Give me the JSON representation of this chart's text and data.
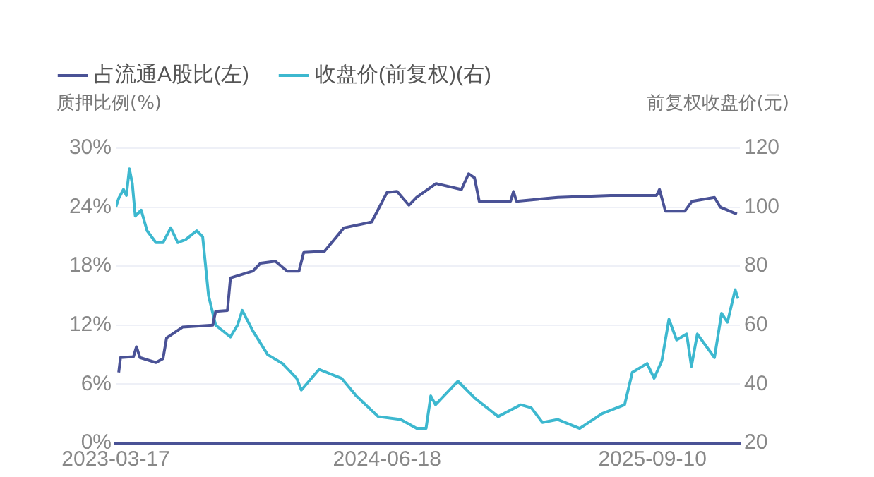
{
  "chart_data": {
    "type": "line",
    "ylabel": "质押比例(%)",
    "y2label": "前复权收盘价(元)",
    "xlim": [
      "2023-03-17",
      "2026-02-05"
    ],
    "xticks": [
      "2023-03-17",
      "2024-06-18",
      "2025-09-10"
    ],
    "ylim": [
      0,
      30
    ],
    "yticks": [
      {
        "value": 0,
        "label": "0%"
      },
      {
        "value": 6,
        "label": "6%"
      },
      {
        "value": 12,
        "label": "12%"
      },
      {
        "value": 18,
        "label": "18%"
      },
      {
        "value": 24,
        "label": "24%"
      },
      {
        "value": 30,
        "label": "30%"
      }
    ],
    "y2lim": [
      20,
      120
    ],
    "y2ticks": [
      20,
      40,
      60,
      80,
      100,
      120
    ],
    "grid": "y",
    "legend": "top left",
    "marker": "none",
    "series": [
      {
        "name": "占流通A股比(左)",
        "color": "#4a5296",
        "x": [
          "2023-03-22",
          "2023-03-25",
          "2023-04-16",
          "2023-04-21",
          "2023-04-27",
          "2023-05-24",
          "2023-06-05",
          "2023-06-11",
          "2023-07-08",
          "2023-08-28",
          "2023-09-02",
          "2023-09-22",
          "2023-09-27",
          "2023-11-04",
          "2023-11-17",
          "2023-12-12",
          "2024-01-01",
          "2024-01-21",
          "2024-01-29",
          "2024-03-04",
          "2024-04-06",
          "2024-05-23",
          "2024-06-18",
          "2024-07-05",
          "2024-07-25",
          "2024-08-07",
          "2024-09-09",
          "2024-10-22",
          "2024-11-03",
          "2024-11-13",
          "2024-11-21",
          "2025-01-13",
          "2025-01-18",
          "2025-01-23",
          "2025-04-03",
          "2025-07-01",
          "2025-09-17",
          "2025-09-22",
          "2025-10-02",
          "2025-11-04",
          "2025-11-16",
          "2025-12-24",
          "2026-01-03",
          "2026-01-31"
        ],
        "values": [
          7.2,
          8.7,
          8.8,
          9.8,
          8.7,
          8.2,
          8.6,
          10.7,
          11.8,
          12.0,
          13.4,
          13.5,
          16.8,
          17.5,
          18.3,
          18.5,
          17.5,
          17.5,
          19.4,
          19.5,
          21.9,
          22.5,
          25.5,
          25.6,
          24.2,
          25.0,
          26.4,
          25.8,
          27.4,
          27.0,
          24.6,
          24.6,
          25.6,
          24.6,
          25.0,
          25.2,
          25.2,
          25.8,
          23.6,
          23.6,
          24.6,
          25.0,
          24.0,
          23.3
        ]
      },
      {
        "name": "收盘价(前复权)(右)",
        "color": "#3db8cf",
        "axis": "y2",
        "x": [
          "2023-03-17",
          "2023-03-22",
          "2023-03-30",
          "2023-04-04",
          "2023-04-09",
          "2023-04-14",
          "2023-04-19",
          "2023-04-29",
          "2023-05-09",
          "2023-05-24",
          "2023-06-05",
          "2023-06-18",
          "2023-06-30",
          "2023-07-13",
          "2023-08-01",
          "2023-08-11",
          "2023-08-21",
          "2023-09-02",
          "2023-09-27",
          "2023-10-09",
          "2023-10-17",
          "2023-11-04",
          "2023-11-29",
          "2023-12-24",
          "2024-01-17",
          "2024-01-25",
          "2024-02-24",
          "2024-04-02",
          "2024-04-27",
          "2024-06-03",
          "2024-07-11",
          "2024-08-07",
          "2024-08-23",
          "2024-08-31",
          "2024-09-08",
          "2024-10-16",
          "2024-11-15",
          "2024-12-23",
          "2025-01-30",
          "2025-02-17",
          "2025-03-08",
          "2025-04-03",
          "2025-05-10",
          "2025-06-17",
          "2025-07-25",
          "2025-08-07",
          "2025-09-01",
          "2025-09-13",
          "2025-09-26",
          "2025-10-08",
          "2025-10-21",
          "2025-11-07",
          "2025-11-15",
          "2025-11-25",
          "2025-12-24",
          "2026-01-05",
          "2026-01-15",
          "2026-01-28",
          "2026-02-02"
        ],
        "values": [
          100,
          103,
          106,
          104,
          113,
          108,
          97,
          99,
          92,
          88,
          88,
          93,
          88,
          89,
          92,
          90,
          70,
          60,
          56,
          60,
          65,
          58,
          50,
          47,
          42,
          38,
          45,
          42,
          36,
          29,
          28,
          25,
          25,
          36,
          33,
          41,
          35,
          29,
          33,
          32,
          27,
          28,
          25,
          30,
          33,
          44,
          47,
          42,
          48,
          62,
          55,
          57,
          46,
          57,
          49,
          64,
          61,
          72,
          69
        ]
      }
    ]
  }
}
